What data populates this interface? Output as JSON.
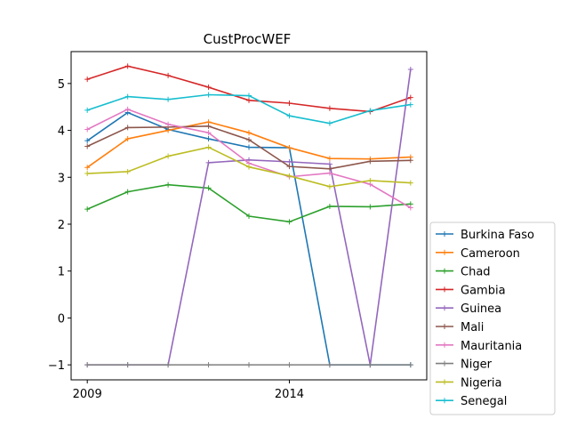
{
  "chart_data": {
    "type": "line",
    "title": "CustProcWEF",
    "xlabel": "",
    "ylabel": "",
    "x": [
      2009,
      2010,
      2011,
      2012,
      2013,
      2014,
      2015,
      2016,
      2017
    ],
    "xticks": [
      2009,
      2014
    ],
    "yticks": [
      -1,
      0,
      1,
      2,
      3,
      4,
      5
    ],
    "xlim": [
      2008.6,
      2017.4
    ],
    "ylim": [
      -1.32,
      5.68
    ],
    "grid": false,
    "legend_position": "lower-right-outside",
    "series": [
      {
        "name": "Burkina Faso",
        "color": "#1f77b4",
        "values": [
          3.78,
          4.38,
          4.02,
          3.82,
          3.64,
          3.63,
          -1.0,
          -1.0,
          -1.0
        ]
      },
      {
        "name": "Cameroon",
        "color": "#ff7f0e",
        "values": [
          3.21,
          3.82,
          4.0,
          4.18,
          3.95,
          3.63,
          3.4,
          3.39,
          3.43
        ]
      },
      {
        "name": "Chad",
        "color": "#2ca02c",
        "values": [
          2.32,
          2.69,
          2.84,
          2.77,
          2.17,
          2.05,
          2.38,
          2.37,
          2.43
        ]
      },
      {
        "name": "Gambia",
        "color": "#d62728",
        "values": [
          5.09,
          5.37,
          5.17,
          4.92,
          4.64,
          4.58,
          4.47,
          4.4,
          4.7
        ]
      },
      {
        "name": "Guinea",
        "color": "#9467bd",
        "values": [
          -1.0,
          -1.0,
          -1.0,
          3.31,
          3.37,
          3.33,
          3.28,
          -1.0,
          5.3
        ]
      },
      {
        "name": "Mali",
        "color": "#8c564b",
        "values": [
          3.66,
          4.06,
          4.07,
          4.09,
          3.8,
          3.23,
          3.18,
          3.34,
          3.36
        ]
      },
      {
        "name": "Mauritania",
        "color": "#e377c2",
        "values": [
          4.02,
          4.45,
          4.13,
          3.95,
          3.3,
          3.01,
          3.09,
          2.85,
          2.35
        ]
      },
      {
        "name": "Niger",
        "color": "#7f7f7f",
        "values": [
          -1.0,
          -1.0,
          -1.0,
          -1.0,
          -1.0,
          -1.0,
          -1.0,
          -1.0,
          -1.0
        ]
      },
      {
        "name": "Nigeria",
        "color": "#bcbd22",
        "values": [
          3.08,
          3.12,
          3.45,
          3.64,
          3.22,
          3.03,
          2.8,
          2.93,
          2.88
        ]
      },
      {
        "name": "Senegal",
        "color": "#17becf",
        "values": [
          4.43,
          4.72,
          4.66,
          4.76,
          4.74,
          4.31,
          4.15,
          4.42,
          4.55
        ]
      }
    ]
  }
}
